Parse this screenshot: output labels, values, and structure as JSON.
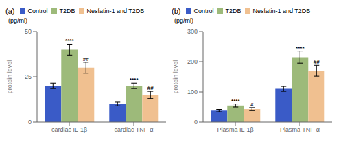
{
  "chart_data": [
    {
      "type": "bar",
      "title": "(a)",
      "unit": "(pg/ml)",
      "y_label": "protein level",
      "categories": [
        "cardiac IL-1β",
        "cardiac TNF-α"
      ],
      "series": [
        {
          "name": "Control",
          "color": "#3a5bc7",
          "values": [
            20,
            10
          ],
          "errors": [
            1.5,
            1.0
          ]
        },
        {
          "name": "T2DB",
          "color": "#9dba7a",
          "values": [
            40,
            20
          ],
          "errors": [
            3.0,
            1.5
          ],
          "annotations": [
            "****",
            "****"
          ]
        },
        {
          "name": "Nesfatin-1 and T2DB",
          "color": "#f0c090",
          "values": [
            30,
            15
          ],
          "errors": [
            3.0,
            2.0
          ],
          "annotations": [
            "##",
            "##"
          ]
        }
      ],
      "ylim": [
        0,
        50
      ],
      "yticks": [
        0,
        25,
        50
      ],
      "grid": false
    },
    {
      "type": "bar",
      "title": "(b)",
      "unit": "(pg/ml)",
      "y_label": "protein level",
      "categories": [
        "Plasma IL-1β",
        "Plasma TNF-α"
      ],
      "series": [
        {
          "name": "Control",
          "color": "#3a5bc7",
          "values": [
            38,
            110
          ],
          "errors": [
            4,
            8
          ]
        },
        {
          "name": "T2DB",
          "color": "#9dba7a",
          "values": [
            55,
            215
          ],
          "errors": [
            5,
            20
          ],
          "annotations": [
            "****",
            "****"
          ]
        },
        {
          "name": "Nesfatin-1 and T2DB",
          "color": "#f0c090",
          "values": [
            43,
            170
          ],
          "errors": [
            5,
            18
          ],
          "annotations": [
            "#",
            "##"
          ]
        }
      ],
      "ylim": [
        0,
        300
      ],
      "yticks": [
        0,
        100,
        200,
        300
      ],
      "grid": false
    }
  ]
}
